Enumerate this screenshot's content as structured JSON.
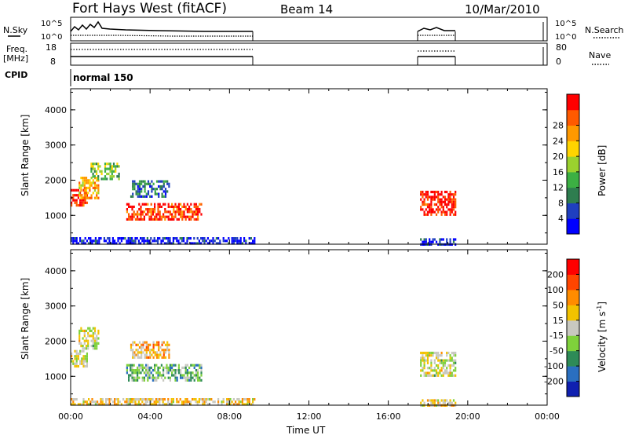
{
  "header": {
    "station": "Fort Hays West (fitACF)",
    "beam": "Beam 14",
    "date": "10/Mar/2010"
  },
  "status_panels": {
    "nsky_label": "N.Sky",
    "nsky_ticks": [
      "10^5",
      "10^0"
    ],
    "nsearch_label": "N.Search",
    "nsearch_ticks": [
      "10^5",
      "10^0"
    ],
    "freq_label_1": "Freq.",
    "freq_label_2": "[MHz]",
    "freq_ticks": [
      "18",
      "8"
    ],
    "nave_label": "Nave",
    "nave_ticks": [
      "80",
      "0"
    ],
    "cpid_label": "CPID",
    "cpid_text": "normal 150"
  },
  "colors": {
    "power_scale": [
      "#0000ff",
      "#1f3fbf",
      "#2e7d4f",
      "#3cb043",
      "#9bd12e",
      "#ffd400",
      "#ff9900",
      "#ff5a00",
      "#ff0000"
    ],
    "velocity_scale": [
      "#1020b0",
      "#2a6fc0",
      "#2e8b57",
      "#7fd13b",
      "#c8c8c0",
      "#f2c200",
      "#ff8c00",
      "#ff4500",
      "#ff0000"
    ]
  },
  "chart_data": [
    {
      "type": "heatmap",
      "quantity": "power",
      "xlabel": "",
      "ylabel": "Slant Range [km]",
      "ylim": [
        180,
        4600
      ],
      "y_ticks": [
        "1000",
        "2000",
        "3000",
        "4000"
      ],
      "x_ticks": [
        "00:00",
        "04:00",
        "08:00",
        "12:00",
        "16:00",
        "20:00",
        "00:00"
      ],
      "xlim_hours": [
        0,
        24
      ],
      "colorbar_label": "Power [dB]",
      "colorbar_ticks": [
        "4",
        "8",
        "12",
        "16",
        "20",
        "24",
        "28"
      ],
      "echo_regions": [
        {
          "t0": 0.0,
          "t1": 0.8,
          "r0": 1250,
          "r1": 1750,
          "level": 0.95
        },
        {
          "t0": 0.4,
          "t1": 1.4,
          "r0": 1500,
          "r1": 2100,
          "level": 0.7
        },
        {
          "t0": 1.0,
          "t1": 2.4,
          "r0": 2000,
          "r1": 2500,
          "level": 0.45
        },
        {
          "t0": 2.8,
          "t1": 6.6,
          "r0": 850,
          "r1": 1350,
          "level": 0.9
        },
        {
          "t0": 3.0,
          "t1": 5.0,
          "r0": 1500,
          "r1": 2000,
          "level": 0.25
        },
        {
          "t0": 0.0,
          "t1": 9.3,
          "r0": 200,
          "r1": 380,
          "level": 0.08
        },
        {
          "t0": 17.6,
          "t1": 19.4,
          "r0": 1050,
          "r1": 1700,
          "level": 0.95
        },
        {
          "t0": 17.6,
          "t1": 19.4,
          "r0": 200,
          "r1": 350,
          "level": 0.1
        }
      ]
    },
    {
      "type": "heatmap",
      "quantity": "velocity",
      "xlabel": "Time UT",
      "ylabel": "Slant Range [km]",
      "ylim": [
        180,
        4600
      ],
      "y_ticks": [
        "1000",
        "2000",
        "3000",
        "4000"
      ],
      "x_ticks": [
        "00:00",
        "04:00",
        "08:00",
        "12:00",
        "16:00",
        "20:00",
        "00:00"
      ],
      "xlim_hours": [
        0,
        24
      ],
      "colorbar_label": "Velocity [m s-1]",
      "colorbar_ticks": [
        "200",
        "100",
        "50",
        "15",
        "-15",
        "-50",
        "-100",
        "-200"
      ],
      "echo_regions": [
        {
          "t0": 0.0,
          "t1": 0.8,
          "r0": 1250,
          "r1": 1750,
          "level": 0.5
        },
        {
          "t0": 0.4,
          "t1": 1.4,
          "r0": 1800,
          "r1": 2400,
          "level": 0.5
        },
        {
          "t0": 2.8,
          "t1": 6.6,
          "r0": 850,
          "r1": 1350,
          "level": 0.35
        },
        {
          "t0": 3.0,
          "t1": 5.0,
          "r0": 1500,
          "r1": 2000,
          "level": 0.62
        },
        {
          "t0": 0.0,
          "t1": 9.3,
          "r0": 200,
          "r1": 380,
          "level": 0.6
        },
        {
          "t0": 17.6,
          "t1": 19.4,
          "r0": 1050,
          "r1": 1700,
          "level": 0.5
        },
        {
          "t0": 17.6,
          "t1": 19.4,
          "r0": 200,
          "r1": 350,
          "level": 0.6
        }
      ]
    }
  ]
}
